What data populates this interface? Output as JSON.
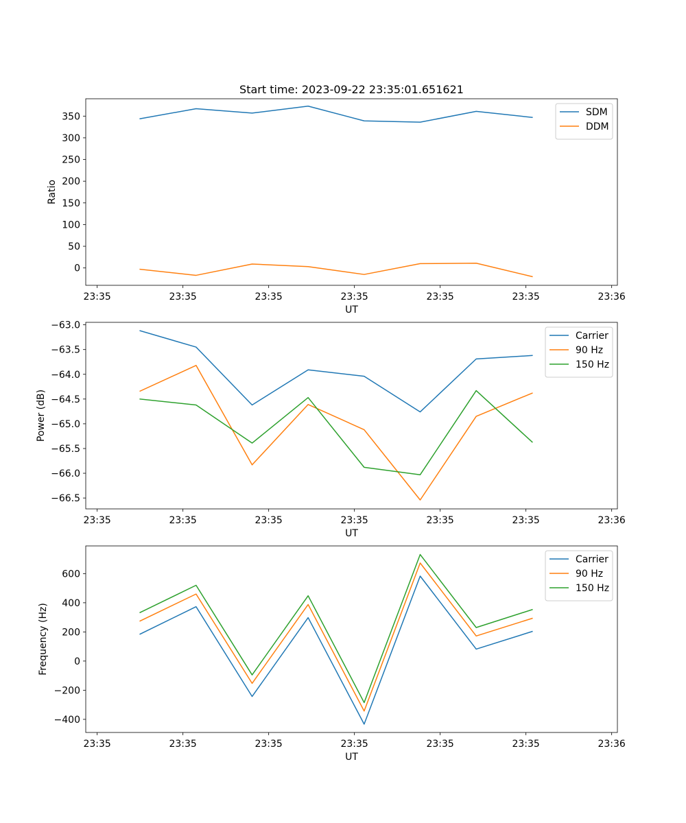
{
  "chart_data": [
    {
      "type": "line",
      "title": "Start time: 2023-09-22 23:35:01.651621",
      "xlabel": "UT",
      "ylabel": "Ratio",
      "xlim": [
        -0.2,
        9.1
      ],
      "ylim": [
        -40,
        390
      ],
      "xtick_values": [
        0,
        1.5,
        3,
        4.5,
        6,
        7.5,
        9
      ],
      "xtick_labels": [
        "23:35",
        "23:35",
        "23:35",
        "23:35",
        "23:35",
        "23:35",
        "23:36"
      ],
      "ytick_values": [
        0,
        50,
        100,
        150,
        200,
        250,
        300,
        350
      ],
      "ytick_labels": [
        "0",
        "50",
        "100",
        "150",
        "200",
        "250",
        "300",
        "350"
      ],
      "x": [
        0.75,
        1.73,
        2.71,
        3.69,
        4.67,
        5.65,
        6.63,
        7.61
      ],
      "legend_position": "top-right",
      "series": [
        {
          "name": "SDM",
          "color": "#1f77b4",
          "values": [
            344,
            367,
            357,
            373,
            339,
            336,
            361,
            347
          ]
        },
        {
          "name": "DDM",
          "color": "#ff7f0e",
          "values": [
            -3,
            -17,
            9,
            3,
            -15,
            10,
            11,
            -20
          ]
        }
      ]
    },
    {
      "type": "line",
      "title": "",
      "xlabel": "UT",
      "ylabel": "Power (dB)",
      "xlim": [
        -0.2,
        9.1
      ],
      "ylim": [
        -66.72,
        -62.95
      ],
      "xtick_values": [
        0,
        1.5,
        3,
        4.5,
        6,
        7.5,
        9
      ],
      "xtick_labels": [
        "23:35",
        "23:35",
        "23:35",
        "23:35",
        "23:35",
        "23:35",
        "23:36"
      ],
      "ytick_values": [
        -66.5,
        -66.0,
        -65.5,
        -65.0,
        -64.5,
        -64.0,
        -63.5,
        -63.0
      ],
      "ytick_labels": [
        "−66.5",
        "−66.0",
        "−65.5",
        "−65.0",
        "−64.5",
        "−64.0",
        "−63.5",
        "−63.0"
      ],
      "x": [
        0.75,
        1.73,
        2.71,
        3.69,
        4.67,
        5.65,
        6.63,
        7.61
      ],
      "legend_position": "top-right",
      "series": [
        {
          "name": "Carrier",
          "color": "#1f77b4",
          "values": [
            -63.12,
            -63.45,
            -64.62,
            -63.91,
            -64.04,
            -64.76,
            -63.69,
            -63.62
          ]
        },
        {
          "name": "90 Hz",
          "color": "#ff7f0e",
          "values": [
            -64.34,
            -63.82,
            -65.83,
            -64.61,
            -65.12,
            -66.54,
            -64.85,
            -64.38
          ]
        },
        {
          "name": "150 Hz",
          "color": "#2ca02c",
          "values": [
            -64.5,
            -64.62,
            -65.39,
            -64.47,
            -65.88,
            -66.03,
            -64.33,
            -65.37
          ]
        }
      ]
    },
    {
      "type": "line",
      "title": "",
      "xlabel": "UT",
      "ylabel": "Frequency (Hz)",
      "xlim": [
        -0.2,
        9.1
      ],
      "ylim": [
        -490,
        790
      ],
      "xtick_values": [
        0,
        1.5,
        3,
        4.5,
        6,
        7.5,
        9
      ],
      "xtick_labels": [
        "23:35",
        "23:35",
        "23:35",
        "23:35",
        "23:35",
        "23:35",
        "23:36"
      ],
      "ytick_values": [
        -400,
        -200,
        0,
        200,
        400,
        600
      ],
      "ytick_labels": [
        "−400",
        "−200",
        "0",
        "200",
        "400",
        "600"
      ],
      "x": [
        0.75,
        1.73,
        2.71,
        3.69,
        4.67,
        5.65,
        6.63,
        7.61
      ],
      "legend_position": "top-right",
      "series": [
        {
          "name": "Carrier",
          "color": "#1f77b4",
          "values": [
            185,
            373,
            -243,
            298,
            -433,
            583,
            82,
            203
          ]
        },
        {
          "name": "90 Hz",
          "color": "#ff7f0e",
          "values": [
            275,
            460,
            -153,
            388,
            -343,
            673,
            172,
            293
          ]
        },
        {
          "name": "150 Hz",
          "color": "#2ca02c",
          "values": [
            333,
            520,
            -95,
            448,
            -285,
            731,
            230,
            353
          ]
        }
      ]
    }
  ]
}
